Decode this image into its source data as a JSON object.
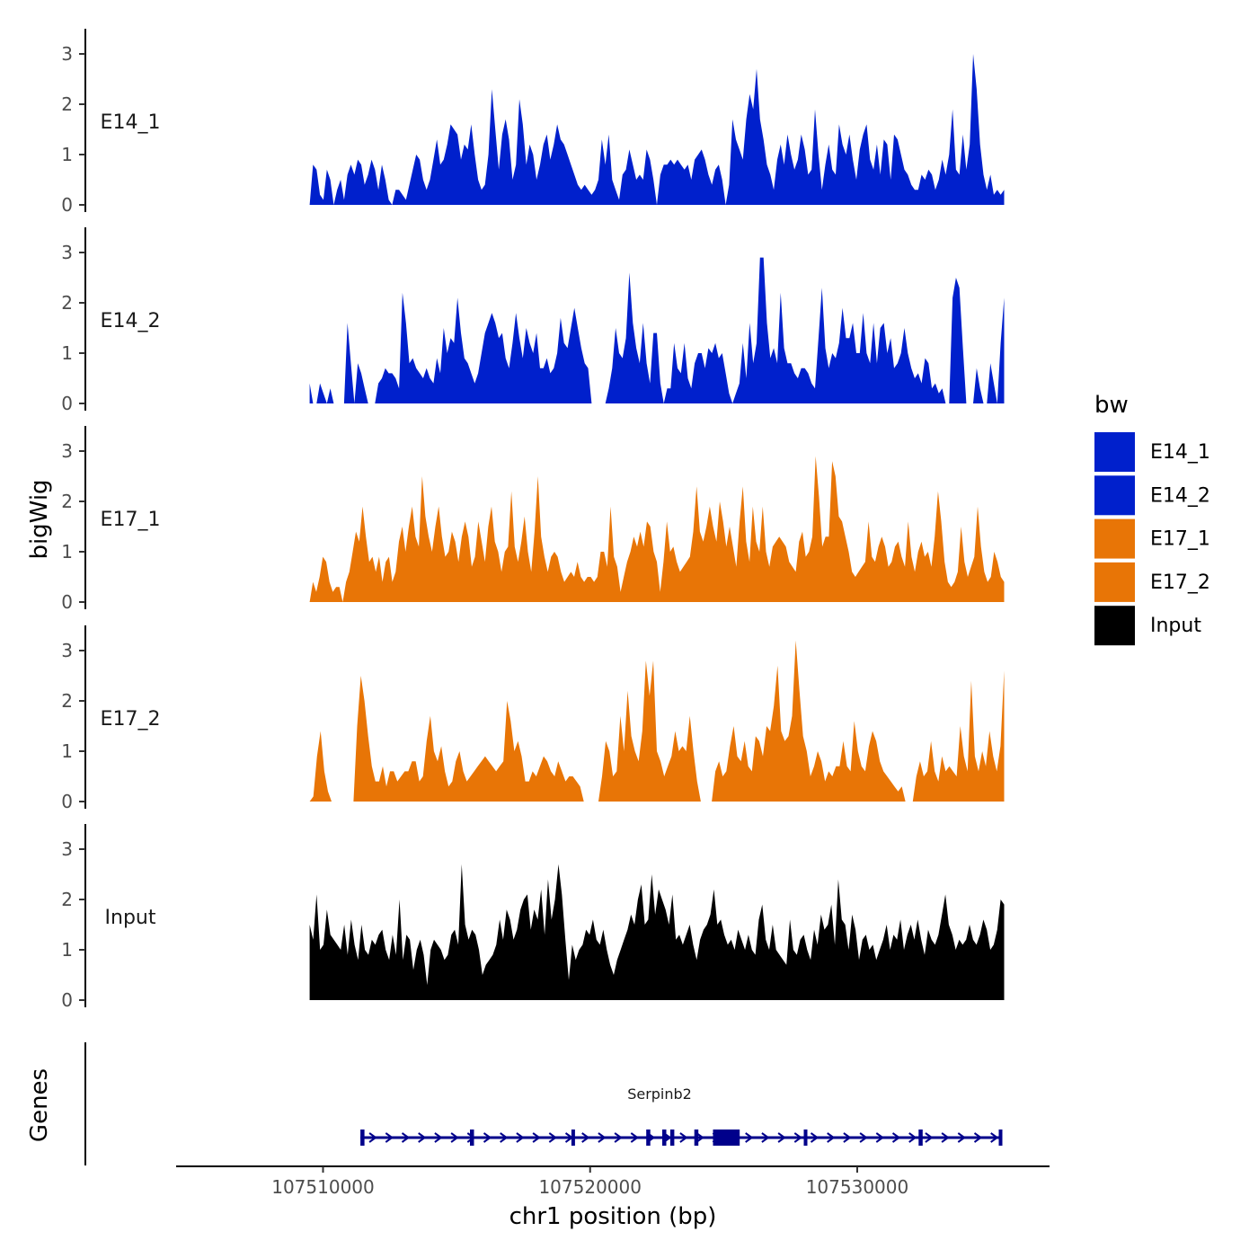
{
  "chart_data": {
    "type": "area",
    "title": "",
    "ylabel": "bigWig",
    "xlabel": "chr1 position (bp)",
    "gene_panel_label": "Genes",
    "xlim": [
      107504500,
      107537200
    ],
    "ylim": [
      0,
      3.4
    ],
    "x_ticks": [
      107510000,
      107520000,
      107530000
    ],
    "x_tick_labels": [
      "107510000",
      "107520000",
      "107530000"
    ],
    "y_ticks": [
      0,
      1,
      2,
      3
    ],
    "y_tick_labels": [
      "0",
      "1",
      "2",
      "3"
    ],
    "x_start": 107509500,
    "x_end": 107535500,
    "legend": {
      "title": "bw",
      "placement": "right",
      "entries": [
        {
          "label": "E14_1",
          "color": "#0020cc"
        },
        {
          "label": "E14_2",
          "color": "#0020cc"
        },
        {
          "label": "E17_1",
          "color": "#e87506"
        },
        {
          "label": "E17_2",
          "color": "#e87506"
        },
        {
          "label": "Input",
          "color": "#000000"
        }
      ]
    },
    "series": [
      {
        "name": "E14_1",
        "color": "#0020cc",
        "values": [
          0,
          0.8,
          0.7,
          0.2,
          0.1,
          0.7,
          0.5,
          0,
          0.3,
          0.5,
          0.1,
          0.6,
          0.8,
          0.6,
          0.9,
          0.8,
          0.4,
          0.6,
          0.9,
          0.7,
          0.3,
          0.8,
          0.5,
          0.1,
          0,
          0.3,
          0.3,
          0.2,
          0.1,
          0.4,
          0.7,
          1.0,
          0.9,
          0.5,
          0.3,
          0.5,
          0.9,
          1.3,
          0.8,
          0.9,
          1.2,
          1.6,
          1.5,
          1.4,
          0.9,
          1.2,
          1.1,
          1.6,
          1.0,
          0.5,
          0.3,
          0.4,
          1.0,
          2.3,
          1.5,
          0.7,
          1.4,
          1.7,
          1.3,
          0.5,
          0.8,
          2.1,
          1.6,
          0.8,
          1.2,
          1.0,
          0.5,
          0.8,
          1.2,
          1.4,
          0.9,
          1.2,
          1.6,
          1.3,
          1.2,
          1.0,
          0.8,
          0.6,
          0.4,
          0.3,
          0.4,
          0.3,
          0.2,
          0.3,
          0.5,
          1.3,
          0.8,
          1.4,
          0.5,
          0.3,
          0.1,
          0.6,
          0.7,
          1.1,
          0.8,
          0.5,
          0.6,
          0.5,
          1.1,
          0.9,
          0.5,
          0,
          0.6,
          0.8,
          0.8,
          0.9,
          0.8,
          0.9,
          0.8,
          0.7,
          0.8,
          0.5,
          0.9,
          1.0,
          1.1,
          0.9,
          0.6,
          0.4,
          0.7,
          0.8,
          0.5,
          0,
          0.4,
          1.7,
          1.3,
          1.1,
          0.9,
          1.7,
          2.2,
          1.9,
          2.7,
          1.7,
          1.3,
          0.8,
          0.6,
          0.3,
          0.9,
          1.2,
          0.8,
          1.4,
          1.0,
          0.7,
          0.9,
          1.4,
          1.1,
          0.6,
          0.7,
          1.9,
          1.0,
          0.3,
          0.8,
          1.2,
          0.7,
          0.6,
          1.6,
          1.2,
          1.0,
          1.4,
          0.9,
          0.5,
          1.1,
          1.4,
          1.6,
          0.9,
          0.7,
          1.2,
          0.6,
          1.3,
          1.2,
          0.5,
          1.4,
          1.3,
          1.0,
          0.7,
          0.6,
          0.4,
          0.3,
          0.3,
          0.6,
          0.5,
          0.7,
          0.6,
          0.3,
          0.5,
          0.9,
          0.6,
          1.0,
          1.9,
          0.7,
          0.6,
          1.4,
          0.7,
          1.2,
          3.0,
          2.3,
          1.2,
          0.6,
          0.3,
          0.6,
          0.2,
          0.3,
          0.2,
          0.3
        ]
      },
      {
        "name": "E14_2",
        "color": "#0020cc",
        "values": [
          0.4,
          0,
          0,
          0.4,
          0.2,
          0,
          0.3,
          0,
          0,
          0,
          0,
          1.6,
          0.8,
          0,
          0.8,
          0.6,
          0.3,
          0,
          0,
          0,
          0.4,
          0.5,
          0.7,
          0.6,
          0.6,
          0.5,
          0.3,
          2.2,
          1.6,
          0.8,
          0.9,
          0.7,
          0.6,
          0.5,
          0.7,
          0.5,
          0.4,
          0.9,
          0.6,
          1.5,
          1.0,
          1.3,
          1.2,
          2.1,
          1.4,
          0.9,
          0.8,
          0.6,
          0.4,
          0.6,
          1.0,
          1.4,
          1.6,
          1.8,
          1.6,
          1.3,
          1.4,
          0.9,
          0.7,
          1.2,
          1.8,
          1.3,
          0.9,
          1.5,
          1.2,
          1.0,
          1.4,
          0.7,
          0.7,
          0.9,
          0.6,
          0.7,
          1.0,
          1.7,
          1.2,
          1.1,
          1.5,
          1.9,
          1.5,
          1.1,
          0.8,
          0.7,
          0,
          0,
          0,
          0,
          0,
          0.3,
          0.7,
          1.5,
          1.0,
          0.9,
          1.3,
          2.6,
          1.6,
          1.1,
          0.8,
          1.6,
          0.8,
          0.4,
          1.4,
          1.4,
          0.4,
          0,
          0.3,
          0.3,
          1.2,
          0.7,
          0.6,
          1.2,
          0.5,
          0.3,
          0.8,
          1.0,
          1.0,
          0.7,
          1.1,
          1.0,
          1.2,
          0.9,
          1.0,
          0.6,
          0.2,
          0,
          0.2,
          0.4,
          1.2,
          0.5,
          1.6,
          0.8,
          1.2,
          2.9,
          2.9,
          1.6,
          0.9,
          1.1,
          0.8,
          2.2,
          1.1,
          0.8,
          0.8,
          0.6,
          0.5,
          0.7,
          0.7,
          0.6,
          0.4,
          0.3,
          1.3,
          2.3,
          1.1,
          0.7,
          1.0,
          0.9,
          1.2,
          1.9,
          1.3,
          1.3,
          1.6,
          1.0,
          1.0,
          1.8,
          1.0,
          0.8,
          1.6,
          0.8,
          1.5,
          1.6,
          1.0,
          1.3,
          0.7,
          0.8,
          1.0,
          1.5,
          1.0,
          0.7,
          0.5,
          0.6,
          0.4,
          0.9,
          0.8,
          0.3,
          0.4,
          0.2,
          0.3,
          0,
          0,
          2.1,
          2.5,
          2.3,
          1.1,
          0,
          0,
          0,
          0.7,
          0.3,
          0,
          0,
          0.8,
          0.4,
          0,
          1.2,
          2.1
        ]
      },
      {
        "name": "E17_1",
        "color": "#e87506",
        "values": [
          0,
          0.4,
          0.2,
          0.5,
          0.9,
          0.8,
          0.4,
          0.2,
          0.3,
          0.3,
          0,
          0.4,
          0.6,
          1.0,
          1.4,
          1.2,
          1.9,
          1.3,
          0.8,
          0.9,
          0.6,
          0.9,
          0.4,
          0.8,
          0.9,
          0.4,
          0.6,
          1.2,
          1.5,
          1.0,
          1.5,
          1.9,
          1.3,
          1.1,
          2.5,
          1.7,
          1.3,
          1.0,
          1.5,
          1.9,
          1.3,
          0.9,
          1.0,
          1.4,
          1.2,
          0.8,
          1.3,
          1.6,
          1.3,
          0.7,
          0.9,
          1.6,
          1.2,
          0.8,
          1.5,
          1.9,
          1.2,
          1.0,
          0.6,
          1.0,
          1.1,
          2.2,
          1.1,
          0.8,
          1.2,
          1.7,
          1.0,
          0.6,
          1.4,
          2.5,
          1.3,
          0.9,
          0.6,
          0.9,
          1.0,
          0.9,
          0.6,
          0.4,
          0.5,
          0.6,
          0.5,
          0.8,
          0.5,
          0.4,
          0.5,
          0.5,
          0.4,
          0.5,
          1.0,
          1.0,
          0.7,
          1.9,
          0.9,
          0.7,
          0.2,
          0.5,
          0.8,
          1.0,
          1.3,
          1.1,
          1.4,
          1.1,
          1.6,
          1.5,
          1.0,
          0.8,
          0.2,
          0.8,
          1.6,
          1.0,
          1.1,
          0.8,
          0.6,
          0.7,
          0.8,
          0.9,
          1.4,
          2.3,
          1.4,
          1.2,
          1.5,
          1.9,
          1.5,
          1.2,
          2.0,
          1.6,
          1.1,
          1.5,
          1.1,
          0.7,
          1.6,
          2.3,
          1.2,
          0.8,
          1.9,
          1.2,
          1.0,
          1.9,
          1.0,
          0.7,
          1.1,
          1.2,
          1.3,
          1.2,
          1.1,
          0.8,
          0.7,
          0.6,
          1.2,
          1.4,
          0.9,
          1.0,
          1.3,
          2.9,
          2.1,
          1.1,
          1.3,
          1.3,
          2.8,
          2.5,
          1.7,
          1.6,
          1.3,
          1.0,
          0.6,
          0.5,
          0.6,
          0.7,
          0.8,
          1.6,
          0.9,
          0.8,
          1.1,
          1.3,
          1.1,
          0.7,
          0.8,
          1.1,
          1.2,
          0.9,
          0.7,
          1.6,
          0.9,
          0.6,
          1.0,
          1.2,
          0.9,
          1.0,
          0.7,
          1.3,
          2.2,
          1.6,
          0.8,
          0.4,
          0.3,
          0.4,
          0.6,
          1.5,
          0.8,
          0.5,
          0.7,
          0.9,
          1.9,
          1.1,
          0.6,
          0.4,
          0.5,
          1.0,
          0.8,
          0.5,
          0.4
        ]
      },
      {
        "name": "E17_2",
        "color": "#e87506",
        "values": [
          0,
          0.1,
          0.9,
          1.4,
          0.6,
          0.2,
          0,
          0,
          0,
          0,
          0,
          0,
          0,
          1.5,
          2.5,
          2.0,
          1.3,
          0.7,
          0.4,
          0.4,
          0.7,
          0.3,
          0.6,
          0.6,
          0.4,
          0.5,
          0.6,
          0.6,
          0.8,
          0.8,
          0.4,
          0.5,
          1.2,
          1.7,
          1.0,
          0.8,
          1.1,
          0.6,
          0.3,
          0.4,
          0.8,
          1.0,
          0.6,
          0.4,
          0.5,
          0.6,
          0.7,
          0.8,
          0.9,
          0.8,
          0.7,
          0.6,
          0.7,
          0.8,
          2.0,
          1.6,
          1.0,
          1.2,
          0.9,
          0.4,
          0.4,
          0.6,
          0.5,
          0.7,
          0.9,
          0.8,
          0.6,
          0.5,
          0.8,
          0.6,
          0.4,
          0.5,
          0.5,
          0.4,
          0.3,
          0,
          0,
          0,
          0,
          0,
          0.5,
          1.2,
          1.0,
          0.5,
          0.6,
          1.7,
          1.0,
          2.2,
          1.3,
          1.0,
          0.8,
          1.4,
          2.8,
          2.1,
          2.8,
          1.0,
          0.8,
          0.5,
          0.7,
          0.9,
          1.4,
          1.0,
          1.1,
          1.0,
          1.7,
          1.0,
          0.4,
          0,
          0,
          0,
          0,
          0.6,
          0.8,
          0.5,
          0.6,
          1.1,
          1.5,
          0.9,
          0.8,
          1.2,
          0.7,
          0.6,
          1.3,
          1.2,
          0.9,
          1.5,
          1.4,
          1.9,
          2.7,
          1.4,
          1.2,
          1.3,
          1.7,
          3.2,
          2.2,
          1.3,
          1.0,
          0.5,
          0.7,
          1.0,
          0.8,
          0.4,
          0.6,
          0.5,
          0.7,
          0.7,
          1.2,
          0.7,
          0.6,
          1.6,
          1.0,
          0.7,
          0.6,
          1.1,
          1.4,
          1.2,
          0.8,
          0.6,
          0.5,
          0.4,
          0.3,
          0.2,
          0.3,
          0,
          0,
          0,
          0.5,
          0.8,
          0.5,
          0.6,
          1.2,
          0.6,
          0.4,
          0.9,
          0.6,
          0.7,
          0.6,
          0.5,
          1.5,
          0.9,
          0.6,
          2.4,
          0.9,
          0.6,
          1.0,
          0.7,
          1.4,
          0.9,
          0.6,
          1.1,
          2.6
        ]
      },
      {
        "name": "Input",
        "color": "#000000",
        "values": [
          1.5,
          1.2,
          2.1,
          1.0,
          1.1,
          1.8,
          1.3,
          1.2,
          1.1,
          1.0,
          1.5,
          0.9,
          1.6,
          1.1,
          0.8,
          1.5,
          1.0,
          0.9,
          1.2,
          1.1,
          1.3,
          1.4,
          1.0,
          0.8,
          1.3,
          0.9,
          2.0,
          0.8,
          1.3,
          1.2,
          0.6,
          1.0,
          1.2,
          0.9,
          0.3,
          1.0,
          1.2,
          1.1,
          1.0,
          0.8,
          0.9,
          1.3,
          1.4,
          1.1,
          2.7,
          1.5,
          1.2,
          1.4,
          1.3,
          1.0,
          0.5,
          0.7,
          0.8,
          0.9,
          1.1,
          1.6,
          1.2,
          1.8,
          1.6,
          1.2,
          1.4,
          1.8,
          2.0,
          2.1,
          1.4,
          1.8,
          1.6,
          2.2,
          1.3,
          2.4,
          1.6,
          2.0,
          2.7,
          2.1,
          1.2,
          0.4,
          1.1,
          0.8,
          1.0,
          1.1,
          1.4,
          1.3,
          1.6,
          1.2,
          1.1,
          1.4,
          1.0,
          0.7,
          0.5,
          0.8,
          1.0,
          1.2,
          1.4,
          1.7,
          1.5,
          2.0,
          2.3,
          1.5,
          1.6,
          2.5,
          1.7,
          2.2,
          2.0,
          1.8,
          1.5,
          2.1,
          1.2,
          1.3,
          1.1,
          1.3,
          1.5,
          1.1,
          0.8,
          1.2,
          1.4,
          1.5,
          1.7,
          2.2,
          1.5,
          1.6,
          1.3,
          1.1,
          1.2,
          1.0,
          1.4,
          1.2,
          1.0,
          1.3,
          1.0,
          0.9,
          1.6,
          1.9,
          1.2,
          1.0,
          1.5,
          1.0,
          0.9,
          0.8,
          0.7,
          1.6,
          1.0,
          0.9,
          1.2,
          1.3,
          1.0,
          0.8,
          1.4,
          1.1,
          1.7,
          1.4,
          1.5,
          1.9,
          1.1,
          2.4,
          1.6,
          1.5,
          1.0,
          1.7,
          1.4,
          0.8,
          1.2,
          1.3,
          1.0,
          1.1,
          0.8,
          1.0,
          1.2,
          1.5,
          1.0,
          1.3,
          1.2,
          1.6,
          1.0,
          1.3,
          1.5,
          1.2,
          1.6,
          1.2,
          0.9,
          1.4,
          1.2,
          1.1,
          1.3,
          1.7,
          2.1,
          1.5,
          1.3,
          1.0,
          1.2,
          1.1,
          1.2,
          1.5,
          1.2,
          1.1,
          1.3,
          1.6,
          1.4,
          1.0,
          1.1,
          1.4,
          2.0,
          1.9
        ]
      }
    ],
    "genes": [
      {
        "name": "Serpinb2",
        "start": 107511400,
        "end": 107535400,
        "strand": "+",
        "exons": [
          [
            107511400,
            107511550
          ],
          [
            107515500,
            107515650
          ],
          [
            107519300,
            107519400
          ],
          [
            107522100,
            107522250
          ],
          [
            107522700,
            107522850
          ],
          [
            107523000,
            107523150
          ],
          [
            107523900,
            107524050
          ],
          [
            107524600,
            107525600
          ],
          [
            107528000,
            107528080
          ],
          [
            107532300,
            107532450
          ],
          [
            107535300,
            107535400
          ]
        ]
      }
    ]
  }
}
